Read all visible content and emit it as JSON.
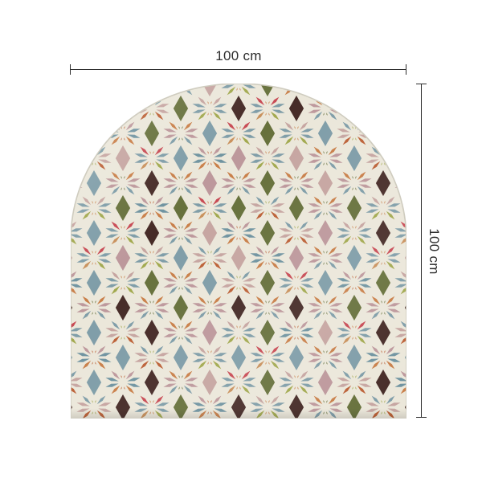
{
  "page": {
    "background": "#ffffff"
  },
  "diagram": {
    "width_label": "100 cm",
    "height_label": "100 cm",
    "line_color": "#2d2d2d",
    "label_color": "#2d2d2d"
  },
  "panel": {
    "name": "Arched panel with multicolour geometric star mosaic pattern",
    "shape": "arch with rounded top and flat bottom",
    "width_cm": 100,
    "height_cm": 100,
    "grout_color": "#ebe7da",
    "edge_color": "#cfccbf",
    "palette": {
      "red": "#c84a54",
      "blue": "#7f9da8",
      "slate": "#6f93a0",
      "olive": "#a2a94f",
      "dark_olive": "#67713c",
      "orange": "#c97f49",
      "terracotta": "#bc6137",
      "pink": "#c6a5a1",
      "mauve": "#bd989c",
      "brown": "#462b27",
      "tan": "#c9915c"
    }
  }
}
